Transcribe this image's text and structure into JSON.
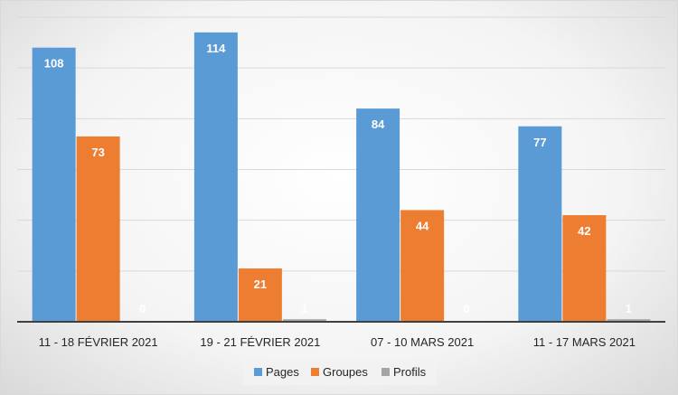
{
  "chart_data": {
    "type": "bar",
    "categories": [
      "11 - 18 FÉVRIER 2021",
      "19 - 21 FÉVRIER 2021",
      "07 - 10 MARS 2021",
      "11 - 17 MARS 2021"
    ],
    "series": [
      {
        "name": "Pages",
        "values": [
          108,
          114,
          84,
          77
        ],
        "color": "#5b9bd5"
      },
      {
        "name": "Groupes",
        "values": [
          73,
          21,
          44,
          42
        ],
        "color": "#ed7d31"
      },
      {
        "name": "Profils",
        "values": [
          0,
          1,
          0,
          1
        ],
        "color": "#a5a5a5"
      }
    ],
    "ylim": [
      0,
      120
    ],
    "grid": true,
    "legend": "bottom",
    "gridline_color": "#d9d9d9",
    "axis_color": "#404040"
  }
}
